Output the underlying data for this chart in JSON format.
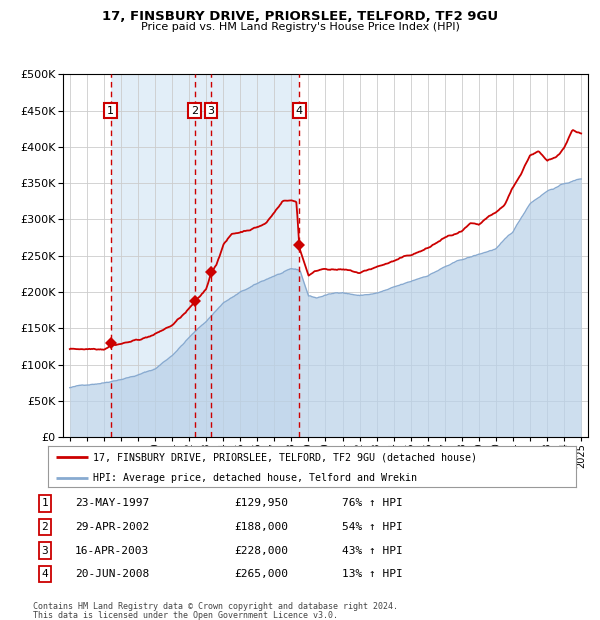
{
  "title": "17, FINSBURY DRIVE, PRIORSLEE, TELFORD, TF2 9GU",
  "subtitle": "Price paid vs. HM Land Registry's House Price Index (HPI)",
  "legend_line1": "17, FINSBURY DRIVE, PRIORSLEE, TELFORD, TF2 9GU (detached house)",
  "legend_line2": "HPI: Average price, detached house, Telford and Wrekin",
  "footer1": "Contains HM Land Registry data © Crown copyright and database right 2024.",
  "footer2": "This data is licensed under the Open Government Licence v3.0.",
  "hpi_color": "#b8d0e8",
  "hpi_line_color": "#88aad0",
  "price_color": "#cc0000",
  "shade_color": "#d0e4f4",
  "plot_bg": "#ffffff",
  "grid_color": "#cccccc",
  "purchases": [
    {
      "num": 1,
      "date": "23-MAY-1997",
      "year": 1997.39,
      "price": 129950,
      "pct": "76%",
      "dir": "↑"
    },
    {
      "num": 2,
      "date": "29-APR-2002",
      "year": 2002.33,
      "price": 188000,
      "pct": "54%",
      "dir": "↑"
    },
    {
      "num": 3,
      "date": "16-APR-2003",
      "year": 2003.29,
      "price": 228000,
      "pct": "43%",
      "dir": "↑"
    },
    {
      "num": 4,
      "date": "20-JUN-2008",
      "year": 2008.47,
      "price": 265000,
      "pct": "13%",
      "dir": "↑"
    }
  ],
  "ylim": [
    0,
    500000
  ],
  "yticks": [
    0,
    50000,
    100000,
    150000,
    200000,
    250000,
    300000,
    350000,
    400000,
    450000,
    500000
  ],
  "xlim_start": 1994.6,
  "xlim_end": 2025.4,
  "xticks": [
    1995,
    1996,
    1997,
    1998,
    1999,
    2000,
    2001,
    2002,
    2003,
    2004,
    2005,
    2006,
    2007,
    2008,
    2009,
    2010,
    2011,
    2012,
    2013,
    2014,
    2015,
    2016,
    2017,
    2018,
    2019,
    2020,
    2021,
    2022,
    2023,
    2024,
    2025
  ],
  "hpi_anchors": [
    [
      1995.0,
      68000
    ],
    [
      1996.0,
      72000
    ],
    [
      1997.0,
      76000
    ],
    [
      1998.0,
      82000
    ],
    [
      1999.0,
      88000
    ],
    [
      2000.0,
      96000
    ],
    [
      2001.0,
      115000
    ],
    [
      2002.0,
      140000
    ],
    [
      2003.0,
      162000
    ],
    [
      2004.0,
      188000
    ],
    [
      2005.0,
      202000
    ],
    [
      2006.0,
      213000
    ],
    [
      2007.0,
      224000
    ],
    [
      2008.0,
      232000
    ],
    [
      2008.5,
      230000
    ],
    [
      2009.0,
      195000
    ],
    [
      2009.5,
      192000
    ],
    [
      2010.0,
      196000
    ],
    [
      2011.0,
      200000
    ],
    [
      2012.0,
      196000
    ],
    [
      2013.0,
      199000
    ],
    [
      2014.0,
      206000
    ],
    [
      2015.0,
      213000
    ],
    [
      2016.0,
      222000
    ],
    [
      2017.0,
      234000
    ],
    [
      2018.0,
      243000
    ],
    [
      2019.0,
      250000
    ],
    [
      2020.0,
      258000
    ],
    [
      2021.0,
      280000
    ],
    [
      2022.0,
      320000
    ],
    [
      2023.0,
      338000
    ],
    [
      2024.0,
      348000
    ],
    [
      2025.0,
      355000
    ]
  ],
  "price_anchors": [
    [
      1995.0,
      121000
    ],
    [
      1996.0,
      122000
    ],
    [
      1997.0,
      124000
    ],
    [
      1997.39,
      129950
    ],
    [
      1998.0,
      133000
    ],
    [
      1999.0,
      138000
    ],
    [
      2000.0,
      146000
    ],
    [
      2001.0,
      158000
    ],
    [
      2001.8,
      175000
    ],
    [
      2002.33,
      188000
    ],
    [
      2002.6,
      194000
    ],
    [
      2003.0,
      205000
    ],
    [
      2003.29,
      228000
    ],
    [
      2003.6,
      240000
    ],
    [
      2004.0,
      268000
    ],
    [
      2004.5,
      282000
    ],
    [
      2005.0,
      285000
    ],
    [
      2005.5,
      289000
    ],
    [
      2006.0,
      293000
    ],
    [
      2006.5,
      298000
    ],
    [
      2007.0,
      313000
    ],
    [
      2007.5,
      330000
    ],
    [
      2008.0,
      330000
    ],
    [
      2008.3,
      328000
    ],
    [
      2008.47,
      265000
    ],
    [
      2009.0,
      228000
    ],
    [
      2009.5,
      234000
    ],
    [
      2010.0,
      238000
    ],
    [
      2011.0,
      236000
    ],
    [
      2012.0,
      230000
    ],
    [
      2013.0,
      238000
    ],
    [
      2014.0,
      246000
    ],
    [
      2015.0,
      253000
    ],
    [
      2016.0,
      262000
    ],
    [
      2017.0,
      276000
    ],
    [
      2018.0,
      283000
    ],
    [
      2018.5,
      292000
    ],
    [
      2019.0,
      288000
    ],
    [
      2019.5,
      298000
    ],
    [
      2020.0,
      303000
    ],
    [
      2020.5,
      313000
    ],
    [
      2021.0,
      338000
    ],
    [
      2021.5,
      358000
    ],
    [
      2022.0,
      383000
    ],
    [
      2022.5,
      388000
    ],
    [
      2023.0,
      373000
    ],
    [
      2023.5,
      378000
    ],
    [
      2024.0,
      393000
    ],
    [
      2024.5,
      418000
    ],
    [
      2025.0,
      413000
    ]
  ]
}
